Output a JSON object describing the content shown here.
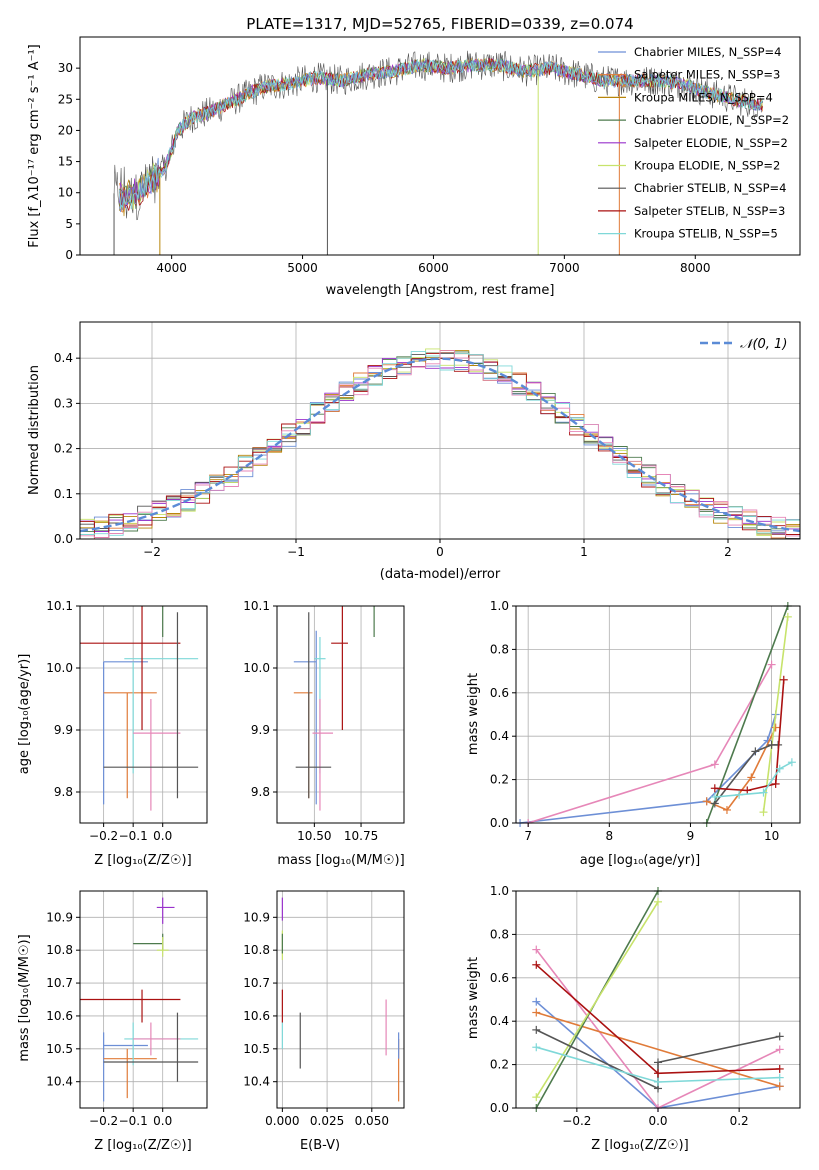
{
  "colors": {
    "chabrier_miles": "#6d8fd6",
    "salpeter_miles": "#e07b39",
    "kroupa_miles": "#b8860b",
    "chabrier_elodie": "#4d7a4d",
    "salpeter_elodie": "#9932cc",
    "kroupa_elodie": "#c7e36b",
    "chabrier_stelib": "#555555",
    "salpeter_stelib": "#aa1111",
    "kroupa_stelib": "#7fd8d8",
    "pink": "#e687b8",
    "normal_curve": "#5b8bd6"
  },
  "chart_data": [
    {
      "type": "line",
      "title": "PLATE=1317, MJD=52765, FIBERID=0339, z=0.074",
      "xlabel": "wavelength [Angstrom, rest frame]",
      "ylabel": "Flux [f_λ10⁻¹⁷ erg cm⁻² s⁻¹ A⁻¹]",
      "xlim": [
        3300,
        8800
      ],
      "ylim": [
        0,
        35
      ],
      "xticks": [
        "4000",
        "5000",
        "6000",
        "7000",
        "8000"
      ],
      "yticks": [
        "0",
        "5",
        "10",
        "15",
        "20",
        "25",
        "30"
      ],
      "legend": "upper-right",
      "series": [
        {
          "name": "Chabrier MILES, N_SSP=4"
        },
        {
          "name": "Salpeter MILES, N_SSP=3"
        },
        {
          "name": "Kroupa MILES, N_SSP=4"
        },
        {
          "name": "Chabrier ELODIE, N_SSP=2"
        },
        {
          "name": "Salpeter ELODIE, N_SSP=2"
        },
        {
          "name": "Kroupa ELODIE, N_SSP=2"
        },
        {
          "name": "Chabrier STELIB, N_SSP=4"
        },
        {
          "name": "Salpeter STELIB, N_SSP=3"
        },
        {
          "name": "Kroupa STELIB, N_SSP=5"
        }
      ],
      "continuum": {
        "x": [
          3550,
          3650,
          3750,
          3850,
          3950,
          4050,
          4150,
          4300,
          4500,
          4700,
          4900,
          5100,
          5300,
          5500,
          5700,
          5900,
          6100,
          6300,
          6500,
          6700,
          6900,
          7100,
          7300,
          7500,
          7700,
          7900,
          8100,
          8300,
          8500
        ],
        "y": [
          10,
          9,
          10,
          12,
          14,
          20,
          22,
          23,
          25,
          27,
          27.5,
          28.5,
          28,
          29,
          29.5,
          30.5,
          30,
          30.5,
          30.5,
          29.5,
          30,
          29,
          28,
          28,
          28,
          27.5,
          26,
          25,
          24
        ]
      }
    },
    {
      "type": "histogram",
      "xlabel": "(data-model)/error",
      "ylabel": "Normed distribution",
      "xlim": [
        -2.5,
        2.5
      ],
      "ylim": [
        0,
        0.48
      ],
      "xticks": [
        "−2",
        "−1",
        "0",
        "1",
        "2"
      ],
      "yticks": [
        "0.0",
        "0.1",
        "0.2",
        "0.3",
        "0.4"
      ],
      "legend_label": "𝒩(0, 1)",
      "bin_width": 0.1
    },
    {
      "type": "scatter",
      "xlabel": "Z [log₁₀(Z/Z☉)]",
      "ylabel": "age  [log₁₀(age/yr)]",
      "xlim": [
        -0.28,
        0.15
      ],
      "ylim": [
        9.75,
        10.1
      ],
      "xticks": [
        "−0.2",
        "−0.1",
        "0.0"
      ],
      "xtick_values": [
        -0.2,
        -0.1,
        0.0
      ],
      "yticks": [
        "9.8",
        "9.9",
        "10.0",
        "10.1"
      ],
      "ytick_values": [
        9.8,
        9.9,
        10.0,
        10.1
      ],
      "points": [
        {
          "c": "chabrier_miles",
          "x": -0.2,
          "xe": [
            -0.2,
            -0.05
          ],
          "y": 10.01,
          "ye": [
            9.78,
            10.01
          ]
        },
        {
          "c": "salpeter_miles",
          "x": -0.12,
          "xe": [
            -0.2,
            -0.02
          ],
          "y": 9.96,
          "ye": [
            9.79,
            9.96
          ]
        },
        {
          "c": "kroupa_stelib",
          "x": -0.1,
          "xe": [
            -0.13,
            0.12
          ],
          "y": 10.015,
          "ye": [
            9.83,
            10.01
          ]
        },
        {
          "c": "pink",
          "x": -0.04,
          "xe": [
            -0.1,
            0.06
          ],
          "y": 9.895,
          "ye": [
            9.77,
            9.95
          ]
        },
        {
          "c": "salpeter_stelib",
          "x": -0.07,
          "xe": [
            -0.28,
            0.06
          ],
          "y": 10.04,
          "ye": [
            9.9,
            10.12
          ]
        },
        {
          "c": "chabrier_stelib",
          "x": 0.05,
          "xe": [
            -0.2,
            0.12
          ],
          "y": 9.84,
          "ye": [
            9.79,
            10.09
          ]
        },
        {
          "c": "chabrier_elodie",
          "x": 0.0,
          "xe": [
            -0.1,
            0.0
          ],
          "y": 10.14,
          "ye": [
            10.05,
            10.17
          ]
        },
        {
          "c": "kroupa_elodie",
          "x": 0.0,
          "xe": [
            -0.02,
            0.02
          ],
          "y": 10.14,
          "ye": [
            10.1,
            10.18
          ]
        },
        {
          "c": "salpeter_elodie",
          "x": 0.0,
          "xe": [
            -0.02,
            0.04
          ],
          "y": 10.14,
          "ye": [
            10.1,
            10.16
          ]
        }
      ]
    },
    {
      "type": "scatter",
      "xlabel": "mass [log₁₀(M/M☉)]",
      "ylabel": "",
      "xlim": [
        10.3,
        10.98
      ],
      "ylim": [
        9.75,
        10.1
      ],
      "xticks": [
        "10.50",
        "10.75"
      ],
      "xtick_values": [
        10.5,
        10.75
      ],
      "yticks": [
        "9.8",
        "9.9",
        "10.0",
        "10.1"
      ],
      "ytick_values": [
        9.8,
        9.9,
        10.0,
        10.1
      ],
      "points": [
        {
          "c": "chabrier_miles",
          "x": 10.51,
          "xe": [
            10.39,
            10.51
          ],
          "y": 10.01,
          "ye": [
            9.78,
            10.06
          ]
        },
        {
          "c": "salpeter_miles",
          "x": 10.47,
          "xe": [
            10.39,
            10.49
          ],
          "y": 9.96,
          "ye": [
            9.79,
            9.96
          ]
        },
        {
          "c": "kroupa_stelib",
          "x": 10.53,
          "xe": [
            10.5,
            10.56
          ],
          "y": 10.015,
          "ye": [
            9.83,
            10.05
          ]
        },
        {
          "c": "pink",
          "x": 10.53,
          "xe": [
            10.49,
            10.6
          ],
          "y": 9.895,
          "ye": [
            9.77,
            9.95
          ]
        },
        {
          "c": "salpeter_stelib",
          "x": 10.65,
          "xe": [
            10.59,
            10.68
          ],
          "y": 10.04,
          "ye": [
            9.9,
            10.12
          ]
        },
        {
          "c": "chabrier_stelib",
          "x": 10.47,
          "xe": [
            10.4,
            10.59
          ],
          "y": 9.84,
          "ye": [
            9.79,
            10.09
          ]
        },
        {
          "c": "chabrier_elodie",
          "x": 10.82,
          "xe": [
            10.8,
            10.85
          ],
          "y": 10.14,
          "ye": [
            10.05,
            10.17
          ]
        },
        {
          "c": "kroupa_elodie",
          "x": 10.84,
          "xe": [
            10.81,
            10.86
          ],
          "y": 10.14,
          "ye": [
            10.1,
            10.18
          ]
        },
        {
          "c": "salpeter_elodie",
          "x": 10.93,
          "xe": [
            10.88,
            10.98
          ],
          "y": 10.135,
          "ye": [
            10.1,
            10.16
          ]
        }
      ]
    },
    {
      "type": "line",
      "xlabel": "age  [log₁₀(age/yr)]",
      "ylabel": "mass weight",
      "xlim": [
        6.85,
        10.35
      ],
      "ylim": [
        0,
        1
      ],
      "xticks": [
        "7",
        "8",
        "9",
        "10"
      ],
      "xtick_values": [
        7,
        8,
        9,
        10
      ],
      "yticks": [
        "0.0",
        "0.2",
        "0.4",
        "0.6",
        "0.8",
        "1.0"
      ],
      "ytick_values": [
        0,
        0.2,
        0.4,
        0.6,
        0.8,
        1.0
      ],
      "series": [
        {
          "c": "chabrier_miles",
          "x": [
            6.9,
            9.2,
            9.95,
            10.05
          ],
          "y": [
            0.0,
            0.1,
            0.38,
            0.5
          ]
        },
        {
          "c": "pink",
          "x": [
            7.0,
            9.3,
            10.0
          ],
          "y": [
            0.0,
            0.27,
            0.73
          ]
        },
        {
          "c": "salpeter_miles",
          "x": [
            9.2,
            9.45,
            9.75,
            10.05
          ],
          "y": [
            0.1,
            0.06,
            0.21,
            0.44
          ]
        },
        {
          "c": "chabrier_elodie",
          "x": [
            9.2,
            10.2
          ],
          "y": [
            0.0,
            1.0
          ]
        },
        {
          "c": "kroupa_elodie",
          "x": [
            9.9,
            10.2
          ],
          "y": [
            0.05,
            0.95
          ]
        },
        {
          "c": "chabrier_stelib",
          "x": [
            9.3,
            9.8,
            10.0,
            10.08
          ],
          "y": [
            0.09,
            0.33,
            0.36,
            0.36
          ]
        },
        {
          "c": "salpeter_stelib",
          "x": [
            9.3,
            9.7,
            10.05,
            10.15
          ],
          "y": [
            0.16,
            0.15,
            0.18,
            0.66
          ]
        },
        {
          "c": "kroupa_stelib",
          "x": [
            9.3,
            9.6,
            9.9,
            10.1,
            10.25
          ],
          "y": [
            0.12,
            0.13,
            0.14,
            0.25,
            0.28
          ]
        }
      ]
    },
    {
      "type": "scatter",
      "xlabel": "Z [log₁₀(Z/Z☉)]",
      "ylabel": "mass [log₁₀(M/M☉)]",
      "xlim": [
        -0.28,
        0.15
      ],
      "ylim": [
        10.32,
        10.98
      ],
      "xticks": [
        "−0.2",
        "−0.1",
        "0.0"
      ],
      "xtick_values": [
        -0.2,
        -0.1,
        0.0
      ],
      "yticks": [
        "10.4",
        "10.5",
        "10.6",
        "10.7",
        "10.8",
        "10.9"
      ],
      "ytick_values": [
        10.4,
        10.5,
        10.6,
        10.7,
        10.8,
        10.9
      ],
      "points": [
        {
          "c": "chabrier_miles",
          "x": -0.2,
          "xe": [
            -0.2,
            -0.05
          ],
          "y": 10.51,
          "ye": [
            10.34,
            10.55
          ]
        },
        {
          "c": "salpeter_miles",
          "x": -0.12,
          "xe": [
            -0.2,
            -0.02
          ],
          "y": 10.47,
          "ye": [
            10.35,
            10.5
          ]
        },
        {
          "c": "kroupa_stelib",
          "x": -0.1,
          "xe": [
            -0.13,
            0.12
          ],
          "y": 10.53,
          "ye": [
            10.45,
            10.58
          ]
        },
        {
          "c": "pink",
          "x": -0.04,
          "xe": [
            -0.1,
            0.06
          ],
          "y": 10.53,
          "ye": [
            10.48,
            10.58
          ]
        },
        {
          "c": "salpeter_stelib",
          "x": -0.07,
          "xe": [
            -0.28,
            0.06
          ],
          "y": 10.65,
          "ye": [
            10.58,
            10.68
          ]
        },
        {
          "c": "chabrier_stelib",
          "x": 0.05,
          "xe": [
            -0.2,
            0.12
          ],
          "y": 10.46,
          "ye": [
            10.4,
            10.61
          ]
        },
        {
          "c": "chabrier_elodie",
          "x": 0.0,
          "xe": [
            -0.1,
            0.0
          ],
          "y": 10.82,
          "ye": [
            10.8,
            10.85
          ]
        },
        {
          "c": "kroupa_elodie",
          "x": 0.0,
          "xe": [
            -0.02,
            0.02
          ],
          "y": 10.8,
          "ye": [
            10.78,
            10.84
          ]
        },
        {
          "c": "salpeter_elodie",
          "x": 0.0,
          "xe": [
            -0.02,
            0.04
          ],
          "y": 10.93,
          "ye": [
            10.88,
            10.96
          ]
        }
      ]
    },
    {
      "type": "scatter",
      "xlabel": "E(B-V)",
      "ylabel": "",
      "xlim": [
        -0.003,
        0.068
      ],
      "ylim": [
        10.32,
        10.98
      ],
      "xticks": [
        "0.000",
        "0.025",
        "0.050"
      ],
      "xtick_values": [
        0.0,
        0.025,
        0.05
      ],
      "yticks": [
        "10.4",
        "10.5",
        "10.6",
        "10.7",
        "10.8",
        "10.9"
      ],
      "ytick_values": [
        10.4,
        10.5,
        10.6,
        10.7,
        10.8,
        10.9
      ],
      "points": [
        {
          "c": "salpeter_elodie",
          "x": 0.0,
          "xe": [
            0.0,
            0.0
          ],
          "y": 10.93,
          "ye": [
            10.89,
            10.96
          ]
        },
        {
          "c": "kroupa_elodie",
          "x": 0.0,
          "xe": [
            0.0,
            0.0
          ],
          "y": 10.8,
          "ye": [
            10.77,
            10.86
          ]
        },
        {
          "c": "chabrier_elodie",
          "x": 0.0,
          "xe": [
            0.0,
            0.0
          ],
          "y": 10.82,
          "ye": [
            10.79,
            10.85
          ]
        },
        {
          "c": "salpeter_stelib",
          "x": 0.0,
          "xe": [
            0.0,
            0.0
          ],
          "y": 10.63,
          "ye": [
            10.58,
            10.68
          ]
        },
        {
          "c": "kroupa_stelib",
          "x": 0.0,
          "xe": [
            0.0,
            0.0
          ],
          "y": 10.53,
          "ye": [
            10.5,
            10.58
          ]
        },
        {
          "c": "chabrier_stelib",
          "x": 0.01,
          "xe": [
            0.01,
            0.01
          ],
          "y": 10.53,
          "ye": [
            10.44,
            10.61
          ]
        },
        {
          "c": "pink",
          "x": 0.058,
          "xe": [
            0.058,
            0.058
          ],
          "y": 10.56,
          "ye": [
            10.48,
            10.65
          ]
        },
        {
          "c": "salpeter_miles",
          "x": 0.065,
          "xe": [
            0.065,
            0.065
          ],
          "y": 10.45,
          "ye": [
            10.34,
            10.53
          ]
        },
        {
          "c": "chabrier_miles",
          "x": 0.065,
          "xe": [
            0.065,
            0.065
          ],
          "y": 10.5,
          "ye": [
            10.47,
            10.55
          ]
        }
      ]
    },
    {
      "type": "line",
      "xlabel": "Z [log₁₀(Z/Z☉)]",
      "ylabel": "mass weight",
      "xlim": [
        -0.35,
        0.35
      ],
      "ylim": [
        0,
        1
      ],
      "xticks": [
        "−0.2",
        "0.0",
        "0.2"
      ],
      "xtick_values": [
        -0.2,
        0.0,
        0.2
      ],
      "yticks": [
        "0.0",
        "0.2",
        "0.4",
        "0.6",
        "0.8",
        "1.0"
      ],
      "ytick_values": [
        0,
        0.2,
        0.4,
        0.6,
        0.8,
        1.0
      ],
      "series": [
        {
          "c": "chabrier_miles",
          "x": [
            -0.3,
            0.0,
            0.3
          ],
          "y": [
            0.49,
            0.0,
            0.1
          ]
        },
        {
          "c": "pink",
          "x": [
            -0.3,
            0.0,
            0.3
          ],
          "y": [
            0.73,
            0.0,
            0.27
          ]
        },
        {
          "c": "salpeter_miles",
          "x": [
            -0.3,
            0.3
          ],
          "y": [
            0.44,
            0.1
          ]
        },
        {
          "c": "chabrier_elodie",
          "x": [
            -0.3,
            0.0
          ],
          "y": [
            0.0,
            1.0
          ]
        },
        {
          "c": "kroupa_elodie",
          "x": [
            -0.3,
            0.0
          ],
          "y": [
            0.05,
            0.95
          ]
        },
        {
          "c": "chabrier_stelib",
          "x": [
            -0.3,
            0.0,
            0.0,
            0.3
          ],
          "y": [
            0.36,
            0.09,
            0.21,
            0.33
          ]
        },
        {
          "c": "salpeter_stelib",
          "x": [
            -0.3,
            0.0,
            0.3
          ],
          "y": [
            0.66,
            0.16,
            0.18
          ]
        },
        {
          "c": "kroupa_stelib",
          "x": [
            -0.3,
            0.0,
            0.3
          ],
          "y": [
            0.28,
            0.12,
            0.14
          ]
        }
      ]
    }
  ]
}
